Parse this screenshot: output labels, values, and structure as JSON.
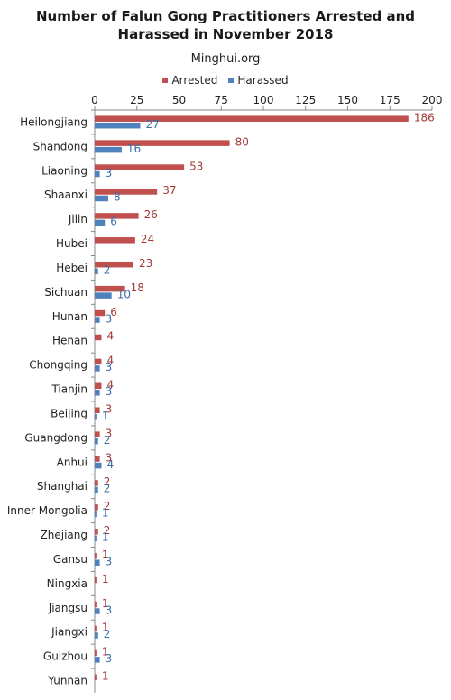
{
  "chart_data": {
    "type": "bar",
    "orientation": "horizontal",
    "title_lines": [
      "Number of Falun Gong Practitioners Arrested and",
      "Harassed in November 2018"
    ],
    "subtitle": "Minghui.org",
    "legend_position": "top",
    "xlim": [
      0,
      200
    ],
    "x_ticks": [
      0,
      25,
      50,
      75,
      100,
      125,
      150,
      175,
      200
    ],
    "grid": false,
    "categories": [
      "Heilongjiang",
      "Shandong",
      "Liaoning",
      "Shaanxi",
      "Jilin",
      "Hubei",
      "Hebei",
      "Sichuan",
      "Hunan",
      "Henan",
      "Chongqing",
      "Tianjin",
      "Beijing",
      "Guangdong",
      "Anhui",
      "Shanghai",
      "Inner Mongolia",
      "Zhejiang",
      "Gansu",
      "Ningxia",
      "Jiangsu",
      "Jiangxi",
      "Guizhou",
      "Yunnan"
    ],
    "series": [
      {
        "name": "Arrested",
        "color": "#c0504d",
        "values": [
          186,
          80,
          53,
          37,
          26,
          24,
          23,
          18,
          6,
          4,
          4,
          4,
          3,
          3,
          3,
          2,
          2,
          2,
          1,
          1,
          1,
          1,
          1,
          1
        ]
      },
      {
        "name": "Harassed",
        "color": "#4f81bd",
        "values": [
          27,
          16,
          3,
          8,
          6,
          null,
          2,
          10,
          3,
          null,
          3,
          3,
          1,
          2,
          4,
          2,
          1,
          1,
          3,
          null,
          3,
          2,
          3,
          null
        ]
      }
    ]
  }
}
